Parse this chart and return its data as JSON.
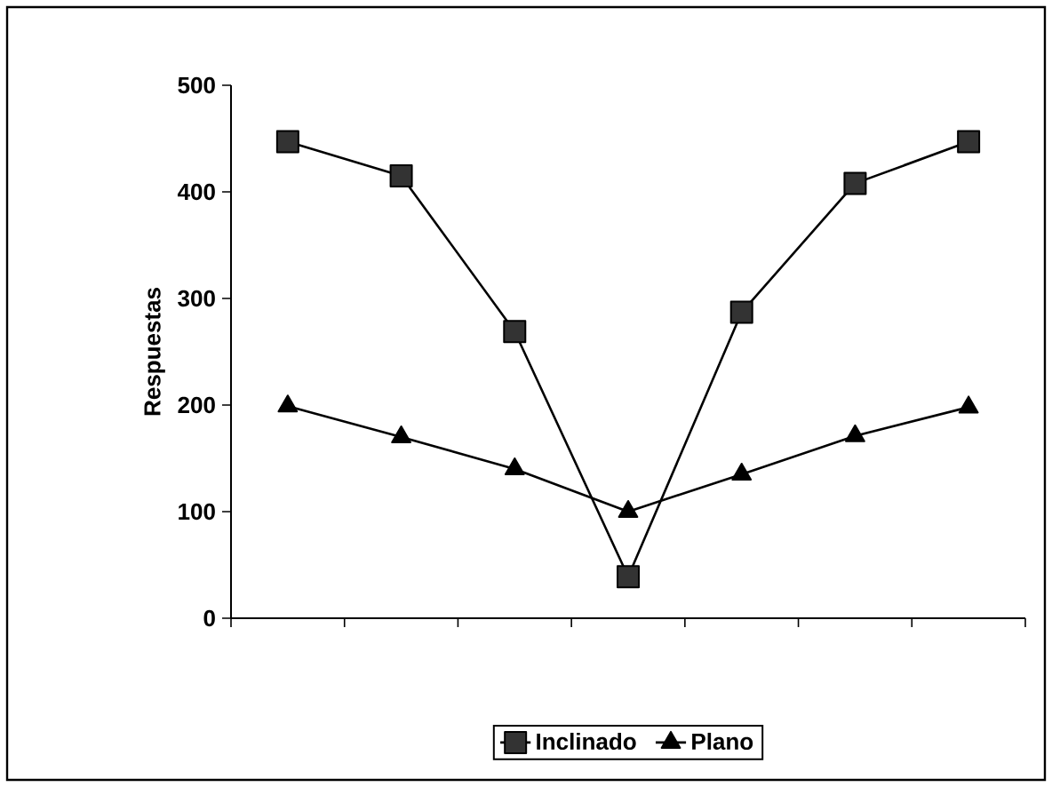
{
  "chart_data": {
    "type": "line",
    "ylabel": "Respuestas",
    "categories": [
      null,
      null,
      null,
      null,
      null,
      null,
      null
    ],
    "series": [
      {
        "name": "Inclinado",
        "color": "#333333",
        "marker": "square",
        "values": [
          447,
          415,
          269,
          39,
          287,
          408,
          447
        ]
      },
      {
        "name": "Plano",
        "color": "#000000",
        "marker": "triangle",
        "values": [
          199,
          170,
          140,
          100,
          135,
          171,
          198
        ]
      }
    ],
    "ylim": [
      0,
      500
    ],
    "yticks": [
      0,
      100,
      200,
      300,
      400,
      500
    ],
    "legend": "bottom",
    "grid": false
  }
}
